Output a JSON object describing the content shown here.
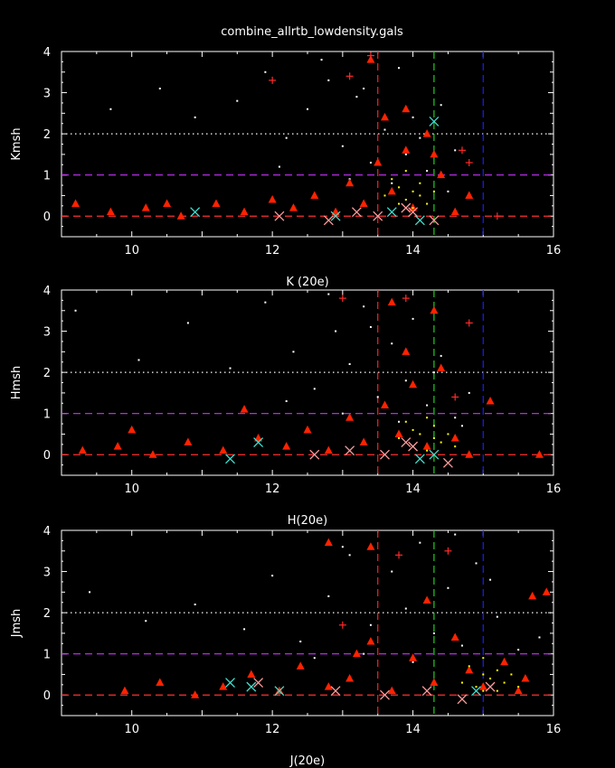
{
  "figure": {
    "title": "combine_allrtb_lowdensity.gals",
    "background": "#000000",
    "foreground": "#ffffff"
  },
  "colors": {
    "triangle": "#ff2200",
    "yellow": "#ffff00",
    "cyan": "#40e0d0",
    "pink": "#ff9c9c",
    "plus": "#ff2a2a",
    "hline_zero": "#ff3030",
    "hline_one": "#cc33ff",
    "hline_two": "#ffffff",
    "vline_red": "#ff2020",
    "vline_green": "#22cc22",
    "vline_blue": "#1a1aff"
  },
  "chart_data": [
    {
      "type": "scatter",
      "title": "combine_allrtb_lowdensity.gals",
      "xlabel": "K (20e)",
      "ylabel": "Kmsh",
      "xlim": [
        9,
        16
      ],
      "ylim": [
        -0.5,
        4
      ],
      "xticks": [
        10,
        12,
        14,
        16
      ],
      "yticks": [
        0,
        1,
        2,
        3,
        4
      ],
      "hlines": [
        {
          "y": 0,
          "style": "dashed",
          "color": "red"
        },
        {
          "y": 1,
          "style": "dashed",
          "color": "magenta"
        },
        {
          "y": 2,
          "style": "dotted",
          "color": "white"
        }
      ],
      "vlines": [
        {
          "x": 13.5,
          "style": "dashed",
          "color": "red"
        },
        {
          "x": 14.3,
          "style": "dashed",
          "color": "green"
        },
        {
          "x": 15.0,
          "style": "dashed",
          "color": "blue"
        }
      ],
      "series": [
        {
          "marker": "dot",
          "color": "white",
          "x": [
            9.7,
            10.4,
            10.9,
            11.5,
            11.9,
            12.2,
            12.5,
            12.8,
            13.0,
            13.2,
            13.4,
            13.6,
            13.8,
            13.9,
            14.0,
            14.2,
            14.4,
            14.6,
            12.1,
            13.1,
            13.7,
            14.1,
            14.5,
            12.7,
            13.3
          ],
          "y": [
            2.6,
            3.1,
            2.4,
            2.8,
            3.5,
            1.9,
            2.6,
            3.3,
            1.7,
            2.9,
            1.3,
            2.1,
            3.6,
            1.5,
            2.4,
            1.1,
            2.7,
            1.6,
            1.2,
            0.9,
            0.8,
            1.9,
            0.6,
            3.8,
            3.1
          ]
        },
        {
          "marker": "triangle",
          "color": "red",
          "x": [
            9.2,
            9.7,
            10.2,
            10.7,
            11.2,
            11.6,
            12.0,
            12.3,
            12.6,
            12.9,
            13.1,
            13.3,
            13.5,
            13.7,
            13.9,
            14.0,
            14.2,
            14.4,
            14.6,
            14.8,
            13.6,
            13.9,
            14.3,
            13.4,
            10.5
          ],
          "y": [
            0.3,
            0.1,
            0.2,
            0.0,
            0.3,
            0.1,
            0.4,
            0.2,
            0.5,
            0.1,
            0.8,
            0.3,
            1.3,
            0.6,
            1.6,
            0.2,
            2.0,
            1.0,
            0.1,
            0.5,
            2.4,
            2.6,
            1.5,
            3.8,
            0.3
          ]
        },
        {
          "marker": "dot",
          "color": "yellow",
          "x": [
            13.6,
            13.7,
            13.8,
            13.8,
            13.9,
            13.9,
            14.0,
            14.0,
            14.1,
            14.1,
            14.2,
            14.3
          ],
          "y": [
            0.5,
            0.9,
            0.3,
            0.7,
            0.4,
            1.1,
            0.2,
            0.6,
            0.5,
            0.8,
            0.3,
            0.6
          ]
        },
        {
          "marker": "x",
          "color": "cyan",
          "x": [
            14.3,
            13.7,
            14.1,
            12.9,
            10.9
          ],
          "y": [
            2.3,
            0.1,
            -0.1,
            0.0,
            0.1
          ]
        },
        {
          "marker": "x",
          "color": "pink",
          "x": [
            13.2,
            13.5,
            12.8,
            14.0,
            13.9,
            12.1,
            14.3
          ],
          "y": [
            0.1,
            0.0,
            -0.1,
            0.1,
            0.2,
            0.0,
            -0.1
          ]
        },
        {
          "marker": "plus",
          "color": "red",
          "x": [
            12.0,
            13.1,
            13.4,
            14.8,
            15.2,
            14.7
          ],
          "y": [
            3.3,
            3.4,
            3.9,
            1.3,
            0.0,
            1.6
          ]
        }
      ]
    },
    {
      "type": "scatter",
      "xlabel": "H(20e)",
      "ylabel": "Hmsh",
      "xlim": [
        9,
        16
      ],
      "ylim": [
        -0.5,
        4
      ],
      "xticks": [
        10,
        12,
        14,
        16
      ],
      "yticks": [
        0,
        1,
        2,
        3,
        4
      ],
      "hlines": [
        {
          "y": 0,
          "style": "dashed",
          "color": "red"
        },
        {
          "y": 1,
          "style": "dashed",
          "color": "magenta"
        },
        {
          "y": 2,
          "style": "dotted",
          "color": "white"
        }
      ],
      "vlines": [
        {
          "x": 13.5,
          "style": "dashed",
          "color": "red"
        },
        {
          "x": 14.3,
          "style": "dashed",
          "color": "green"
        },
        {
          "x": 15.0,
          "style": "dashed",
          "color": "blue"
        }
      ],
      "series": [
        {
          "marker": "dot",
          "color": "white",
          "x": [
            9.2,
            10.1,
            10.8,
            11.4,
            11.9,
            12.3,
            12.6,
            12.9,
            13.1,
            13.3,
            13.5,
            13.7,
            13.9,
            14.0,
            14.2,
            14.4,
            14.6,
            14.8,
            12.2,
            13.0,
            13.8,
            14.3,
            14.7,
            12.8,
            13.4
          ],
          "y": [
            3.5,
            2.3,
            3.2,
            2.1,
            3.7,
            2.5,
            1.6,
            3.0,
            2.2,
            3.6,
            1.4,
            2.7,
            1.8,
            3.3,
            1.2,
            2.4,
            0.9,
            1.5,
            1.3,
            1.0,
            0.8,
            2.0,
            0.7,
            3.9,
            3.1
          ]
        },
        {
          "marker": "triangle",
          "color": "red",
          "x": [
            9.3,
            9.8,
            10.3,
            10.8,
            11.3,
            11.8,
            12.2,
            12.5,
            12.8,
            13.1,
            13.3,
            13.6,
            13.8,
            14.0,
            14.2,
            14.4,
            14.6,
            14.8,
            15.1,
            15.8,
            13.9,
            14.3,
            13.7,
            10.0,
            11.6
          ],
          "y": [
            0.1,
            0.2,
            0.0,
            0.3,
            0.1,
            0.4,
            0.2,
            0.6,
            0.1,
            0.9,
            0.3,
            1.2,
            0.5,
            1.7,
            0.2,
            2.1,
            0.4,
            0.0,
            1.3,
            0.0,
            2.5,
            3.5,
            3.7,
            0.6,
            1.1
          ]
        },
        {
          "marker": "dot",
          "color": "yellow",
          "x": [
            13.8,
            13.9,
            14.0,
            14.0,
            14.1,
            14.2,
            14.2,
            14.3,
            14.3,
            14.4,
            14.5,
            14.6
          ],
          "y": [
            0.4,
            0.8,
            0.2,
            0.6,
            0.5,
            0.1,
            0.9,
            0.4,
            0.7,
            0.3,
            0.5,
            0.2
          ]
        },
        {
          "marker": "x",
          "color": "cyan",
          "x": [
            11.4,
            11.8,
            14.3,
            14.1
          ],
          "y": [
            -0.1,
            0.3,
            0.0,
            -0.1
          ]
        },
        {
          "marker": "x",
          "color": "pink",
          "x": [
            13.1,
            13.6,
            14.0,
            14.5,
            12.6,
            13.9
          ],
          "y": [
            0.1,
            0.0,
            0.2,
            -0.2,
            0.0,
            0.3
          ]
        },
        {
          "marker": "plus",
          "color": "red",
          "x": [
            13.0,
            13.9,
            14.8,
            14.6
          ],
          "y": [
            3.8,
            3.8,
            3.2,
            1.4
          ]
        }
      ]
    },
    {
      "type": "scatter",
      "xlabel": "J(20e)",
      "ylabel": "Jmsh",
      "xlim": [
        9,
        16
      ],
      "ylim": [
        -0.5,
        4
      ],
      "xticks": [
        10,
        12,
        14,
        16
      ],
      "yticks": [
        0,
        1,
        2,
        3,
        4
      ],
      "hlines": [
        {
          "y": 0,
          "style": "dashed",
          "color": "red"
        },
        {
          "y": 1,
          "style": "dashed",
          "color": "magenta"
        },
        {
          "y": 2,
          "style": "dotted",
          "color": "white"
        }
      ],
      "vlines": [
        {
          "x": 13.5,
          "style": "dashed",
          "color": "red"
        },
        {
          "x": 14.3,
          "style": "dashed",
          "color": "green"
        },
        {
          "x": 15.0,
          "style": "dashed",
          "color": "blue"
        }
      ],
      "series": [
        {
          "marker": "dot",
          "color": "white",
          "x": [
            9.4,
            10.2,
            10.9,
            11.6,
            12.0,
            12.4,
            12.8,
            13.1,
            13.4,
            13.7,
            13.9,
            14.1,
            14.3,
            14.5,
            14.7,
            14.9,
            15.2,
            15.5,
            12.6,
            13.3,
            14.0,
            14.6,
            15.1,
            13.0,
            15.8
          ],
          "y": [
            2.5,
            1.8,
            2.2,
            1.6,
            2.9,
            1.3,
            2.4,
            3.4,
            1.7,
            3.0,
            2.1,
            3.7,
            1.5,
            2.6,
            1.2,
            3.2,
            1.9,
            1.1,
            0.9,
            1.0,
            0.8,
            3.9,
            2.8,
            3.6,
            1.4
          ]
        },
        {
          "marker": "triangle",
          "color": "red",
          "x": [
            9.9,
            10.4,
            10.9,
            11.3,
            11.7,
            12.1,
            12.4,
            12.8,
            13.1,
            13.4,
            13.7,
            14.0,
            14.3,
            14.6,
            14.8,
            15.0,
            15.3,
            15.6,
            15.9,
            13.4,
            14.2,
            15.7,
            12.8,
            13.2,
            15.5
          ],
          "y": [
            0.1,
            0.3,
            0.0,
            0.2,
            0.5,
            0.1,
            0.7,
            0.2,
            0.4,
            1.3,
            0.1,
            0.9,
            0.3,
            1.4,
            0.6,
            0.2,
            0.8,
            0.4,
            2.5,
            3.6,
            2.3,
            2.4,
            3.7,
            1.0,
            0.1
          ]
        },
        {
          "marker": "dot",
          "color": "yellow",
          "x": [
            14.7,
            14.8,
            14.9,
            15.0,
            15.0,
            15.1,
            15.2,
            15.2,
            15.3,
            15.4,
            15.5,
            15.0
          ],
          "y": [
            0.3,
            0.7,
            0.2,
            0.5,
            0.9,
            0.4,
            0.1,
            0.6,
            0.3,
            0.5,
            0.2,
            0.1
          ]
        },
        {
          "marker": "x",
          "color": "cyan",
          "x": [
            11.4,
            11.7,
            12.1,
            14.9
          ],
          "y": [
            0.3,
            0.2,
            0.1,
            0.1
          ]
        },
        {
          "marker": "x",
          "color": "pink",
          "x": [
            11.8,
            12.9,
            13.6,
            14.2,
            14.7,
            15.1
          ],
          "y": [
            0.3,
            0.1,
            0.0,
            0.1,
            -0.1,
            0.2
          ]
        },
        {
          "marker": "plus",
          "color": "red",
          "x": [
            13.8,
            14.5,
            13.0
          ],
          "y": [
            3.4,
            3.5,
            1.7
          ]
        }
      ]
    }
  ]
}
